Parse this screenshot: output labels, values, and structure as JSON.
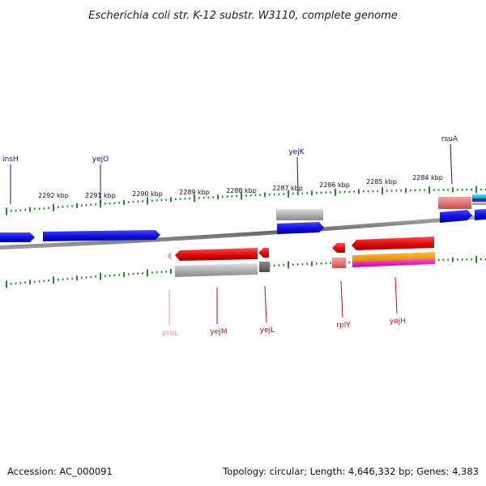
{
  "title": "Escherichia coli str. K-12 substr. W3110, complete genome",
  "footer": {
    "accession": "Accession: AC_000091",
    "stats": "Topology: circular; Length: 4,646,332 bp; Genes: 4,383"
  },
  "axis": {
    "tick_labels": [
      "2292 kbp",
      "2291 kbp",
      "2290 kbp",
      "2289 kbp",
      "2288 kbp",
      "2287 kbp",
      "2286 kbp",
      "2285 kbp",
      "2284 kbp"
    ]
  },
  "colors": {
    "forward_gene": "#1010e0",
    "reverse_gene": "#e01010",
    "forward_label": "#10108a",
    "reverse_label": "#c01010",
    "prol_label": "#f090b0",
    "tick": "#2a8a2a",
    "backbone": "#7a7a7a",
    "gray_feature": "#b0b0b0",
    "pink_feature": "#e87878",
    "orange_feature": "#f0a020",
    "magenta_feature": "#f020a0",
    "cyan_feature": "#20c0d0"
  },
  "genes": {
    "forward": [
      "insH",
      "yejO",
      "yejK",
      "rsuA"
    ],
    "reverse": [
      "proL",
      "yejM",
      "yejL",
      "rplY",
      "yejH"
    ]
  }
}
